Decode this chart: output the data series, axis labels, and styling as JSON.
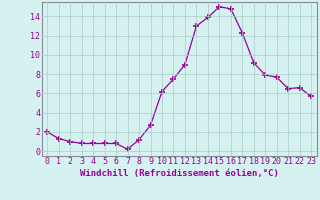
{
  "x": [
    0,
    1,
    2,
    3,
    4,
    5,
    6,
    7,
    8,
    9,
    10,
    11,
    12,
    13,
    14,
    15,
    16,
    17,
    18,
    19,
    20,
    21,
    22,
    23
  ],
  "y": [
    2.0,
    1.3,
    1.0,
    0.8,
    0.8,
    0.8,
    0.8,
    0.2,
    1.2,
    2.7,
    6.2,
    7.5,
    9.0,
    13.0,
    13.9,
    15.0,
    14.8,
    12.3,
    9.2,
    7.9,
    7.7,
    6.5,
    6.6,
    5.7
  ],
  "xlabel": "Windchill (Refroidissement éolien,°C)",
  "line_color": "#990099",
  "marker": "+",
  "marker_size": 5,
  "background_color": "#d5f2f0",
  "grid_color": "#aacccc",
  "xlim": [
    -0.5,
    23.5
  ],
  "ylim": [
    -0.5,
    15.5
  ],
  "yticks": [
    0,
    2,
    4,
    6,
    8,
    10,
    12,
    14
  ],
  "xticks": [
    0,
    1,
    2,
    3,
    4,
    5,
    6,
    7,
    8,
    9,
    10,
    11,
    12,
    13,
    14,
    15,
    16,
    17,
    18,
    19,
    20,
    21,
    22,
    23
  ],
  "tick_color": "#990099",
  "label_fontsize": 6.5,
  "tick_fontsize": 6.0,
  "spine_color": "#888899"
}
